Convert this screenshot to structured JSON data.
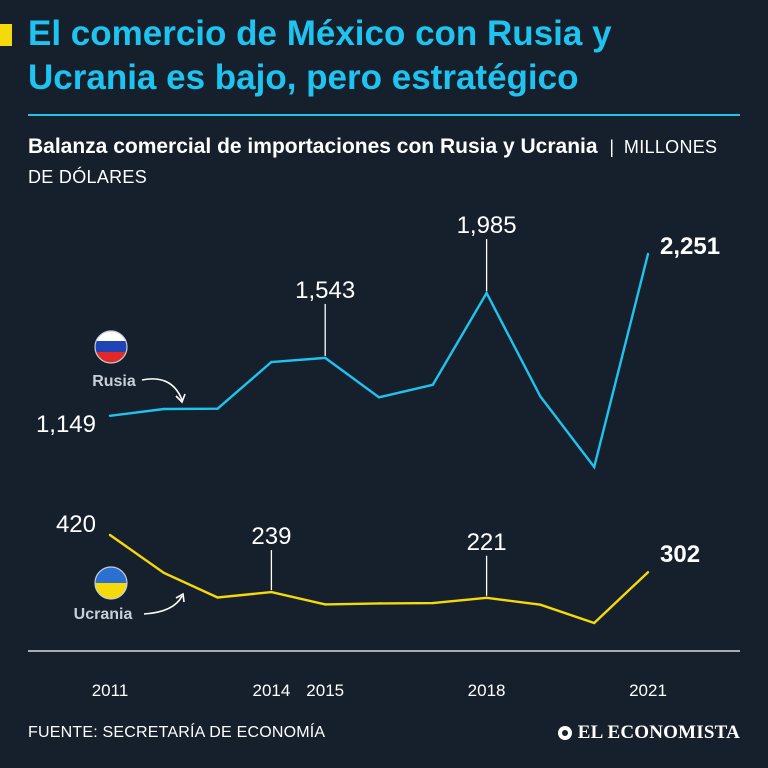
{
  "header": {
    "title": "El comercio de México con Rusia y Ucrania es bajo, pero estratégico",
    "subtitle_bold": "Balanza comercial de importaciones con Rusia y Ucrania",
    "subtitle_separator": "|",
    "subtitle_units": "MILLONES DE DÓLARES"
  },
  "footer": {
    "source": "FUENTE: SECRETARÍA DE ECONOMÍA",
    "brand": "EL ECONOMISTA"
  },
  "colors": {
    "background": "#16202d",
    "title": "#1ec3ef",
    "rusia": "#1ec3ef",
    "ucrania": "#f5d90a",
    "accent": "#f5d90a",
    "axis": "#ffffff"
  },
  "chart_data": {
    "type": "line",
    "title": "Balanza comercial de importaciones con Rusia y Ucrania",
    "ylabel": "Millones de dólares",
    "x": [
      2011,
      2012,
      2013,
      2014,
      2015,
      2016,
      2017,
      2018,
      2019,
      2020,
      2021
    ],
    "x_tick_labels": [
      "2011",
      "2014",
      "2015",
      "2018",
      "2021"
    ],
    "x_tick_values": [
      2011,
      2014,
      2015,
      2018,
      2021
    ],
    "series": [
      {
        "name": "Rusia",
        "values": [
          1149,
          1195,
          1197,
          1515,
          1543,
          1275,
          1360,
          1985,
          1280,
          800,
          2251
        ],
        "labels": [
          {
            "index": 0,
            "text": "1,149"
          },
          {
            "index": 4,
            "text": "1,543"
          },
          {
            "index": 7,
            "text": "1,985"
          },
          {
            "index": 10,
            "text": "2,251"
          }
        ]
      },
      {
        "name": "Ucrania",
        "values": [
          420,
          300,
          222,
          239,
          200,
          203,
          204,
          221,
          199,
          141,
          302
        ],
        "labels": [
          {
            "index": 0,
            "text": "420"
          },
          {
            "index": 3,
            "text": "239"
          },
          {
            "index": 7,
            "text": "221"
          },
          {
            "index": 10,
            "text": "302"
          }
        ]
      }
    ]
  }
}
